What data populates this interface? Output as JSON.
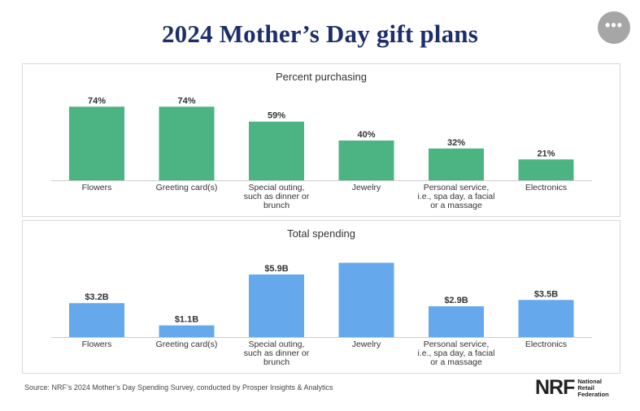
{
  "header": {
    "title": "2024 Mother’s Day gift plans",
    "more_icon": "more-horizontal-icon",
    "more_glyph": "•••"
  },
  "chart_data": [
    {
      "type": "bar",
      "title": "Percent purchasing",
      "categories": [
        [
          "Flowers"
        ],
        [
          "Greeting card(s)"
        ],
        [
          "Special outing,",
          "such as dinner or",
          "brunch"
        ],
        [
          "Jewelry"
        ],
        [
          "Personal service,",
          "i.e., spa day, a facial",
          "or a massage"
        ],
        [
          "Electronics"
        ]
      ],
      "values": [
        74,
        74,
        59,
        40,
        32,
        21
      ],
      "data_labels": [
        "74%",
        "74%",
        "59%",
        "40%",
        "32%",
        "21%"
      ],
      "ylim": [
        0,
        80
      ],
      "color": "#4cb482"
    },
    {
      "type": "bar",
      "title": "Total spending",
      "categories": [
        [
          "Flowers"
        ],
        [
          "Greeting card(s)"
        ],
        [
          "Special outing,",
          "such as dinner or",
          "brunch"
        ],
        [
          "Jewelry"
        ],
        [
          "Personal service,",
          "i.e., spa day, a facial",
          "or a massage"
        ],
        [
          "Electronics"
        ]
      ],
      "values": [
        3.2,
        1.1,
        5.9,
        7.0,
        2.9,
        3.5
      ],
      "data_labels": [
        "$3.2B",
        "$1.1B",
        "$5.9B",
        "",
        "$2.9B",
        "$3.5B"
      ],
      "ylim": [
        0,
        7.5
      ],
      "color": "#65a9ec"
    }
  ],
  "footer": {
    "source": "Source: NRF’s 2024 Mother’s Day Spending Survey, conducted by Prosper Insights & Analytics",
    "logo_mark": "NRF",
    "logo_lines": [
      "National",
      "Retail",
      "Federation"
    ]
  }
}
